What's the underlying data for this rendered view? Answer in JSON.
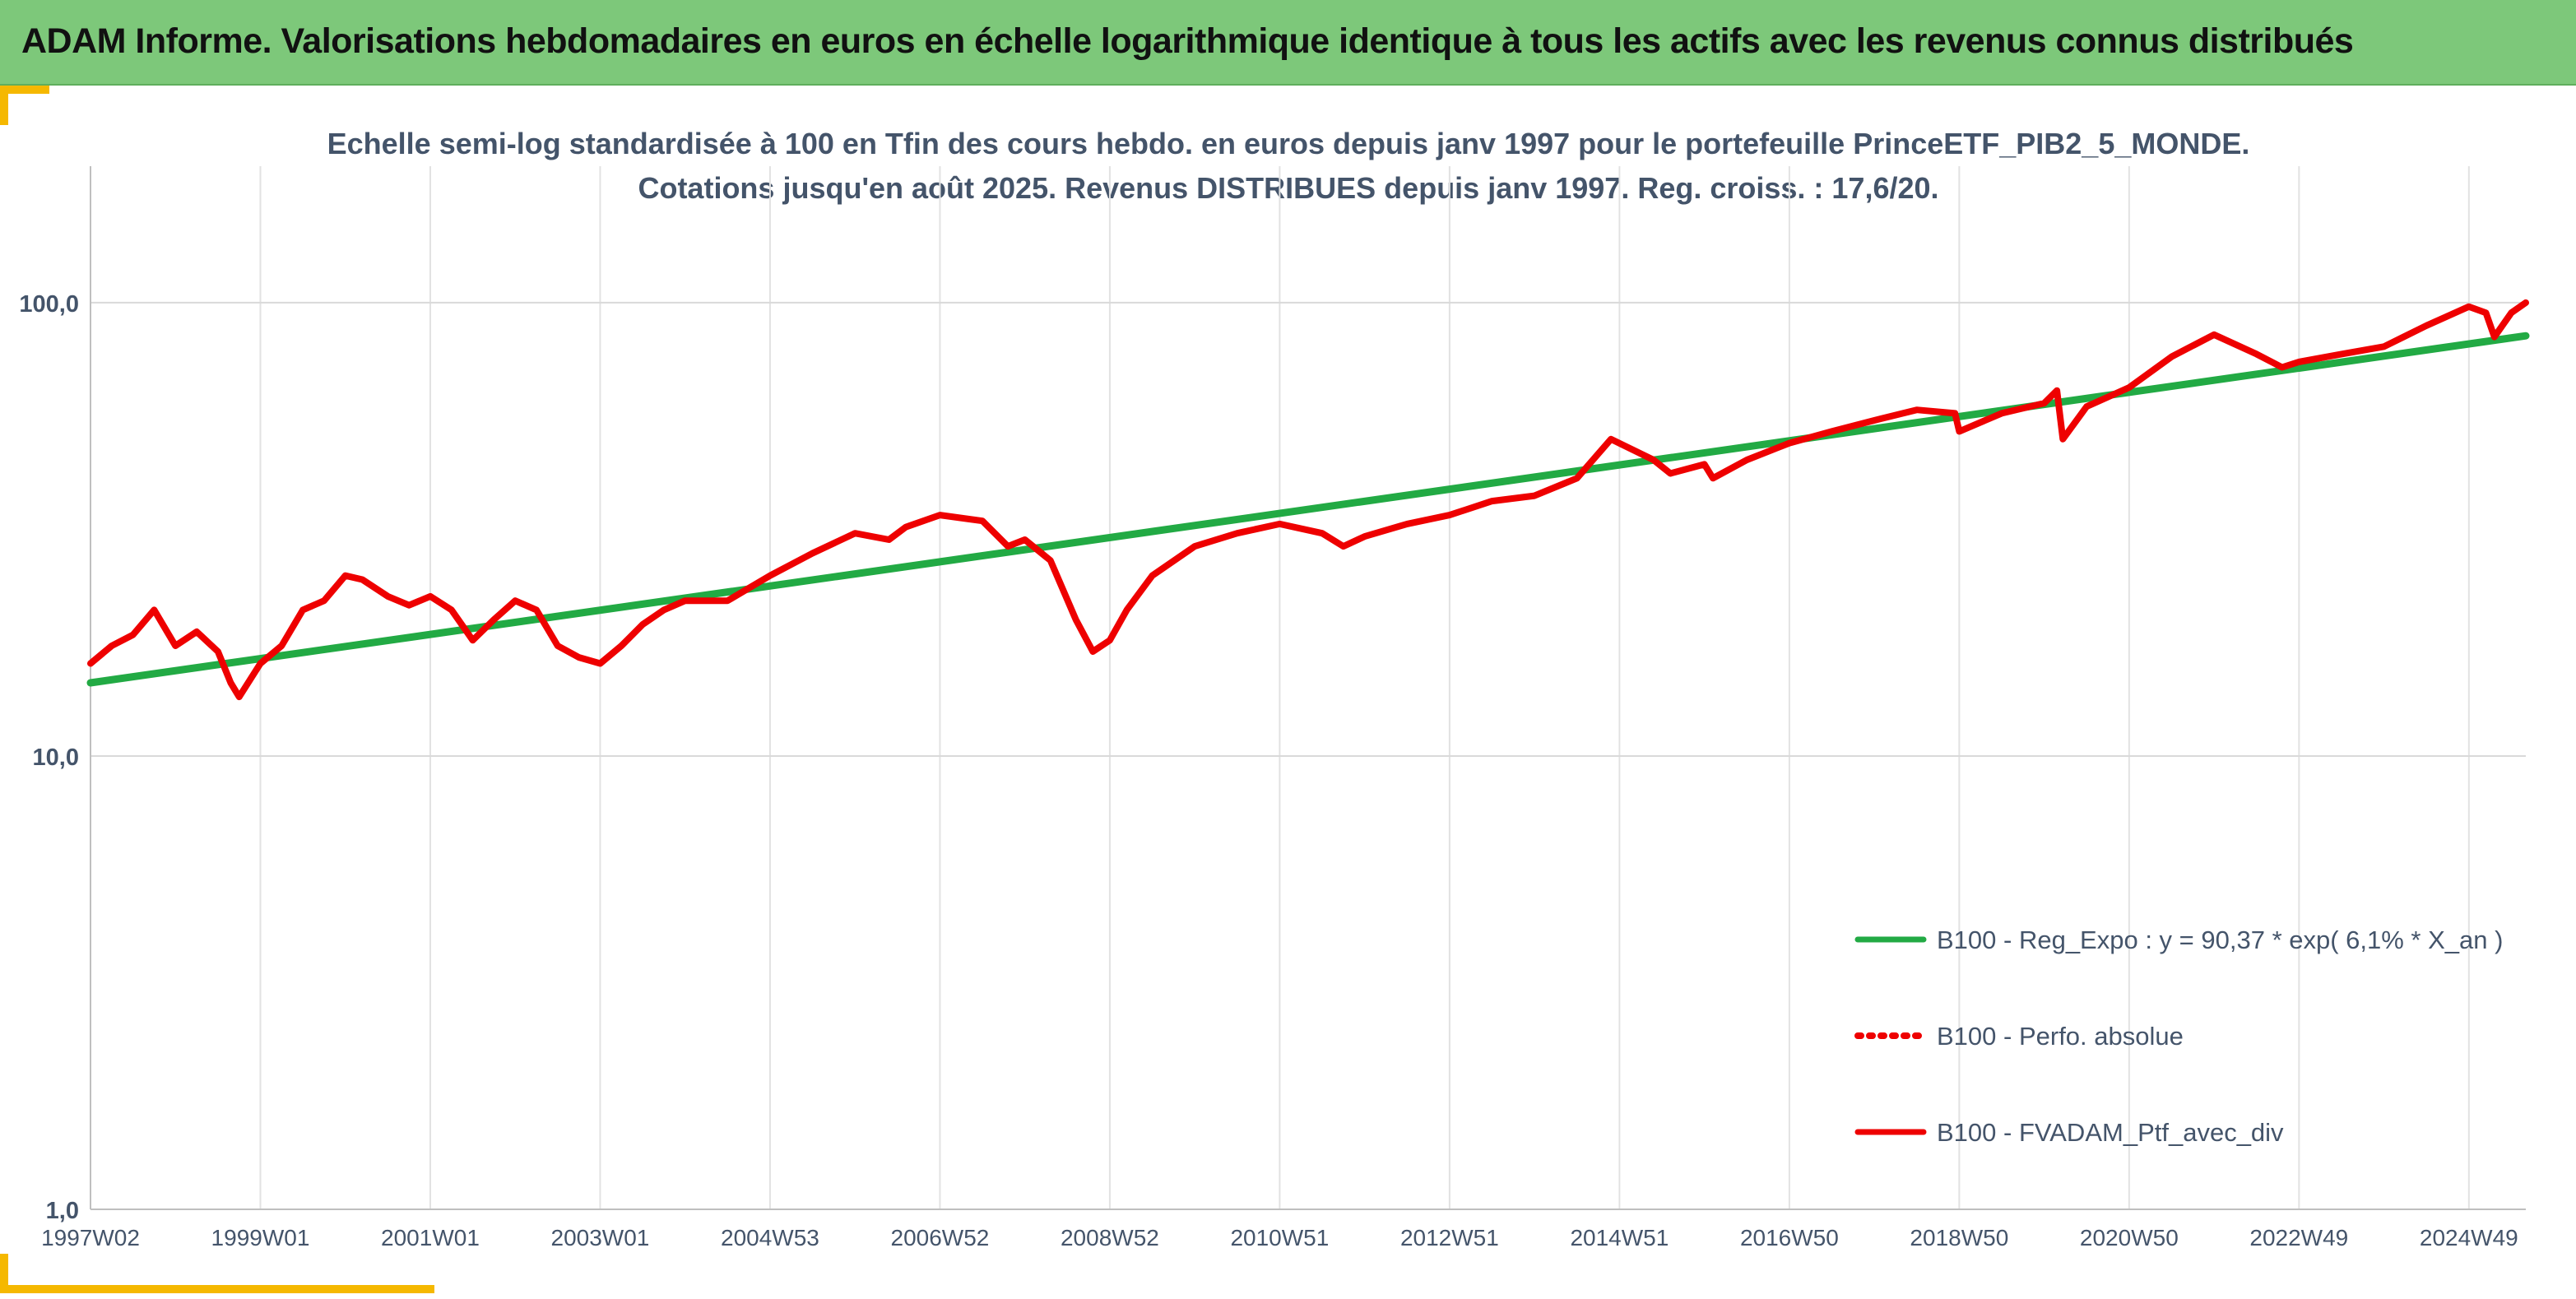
{
  "banner": {
    "title": "ADAM Informe. Valorisations hebdomadaires en euros en échelle logarithmique identique à tous les actifs avec les revenus connus distribués"
  },
  "colors": {
    "banner_bg": "#7dc87a",
    "accent_corner": "#f5b800",
    "series_regression": "#22aa44",
    "series_portfolio": "#ee0000"
  },
  "chart_data": {
    "type": "line",
    "title_lines": [
      "Echelle semi-log standardisée à 100 en Tfin des cours hebdo. en euros depuis janv 1997 pour le portefeuille PrinceETF_PIB2_5_MONDE.",
      "Cotations jusqu'en août 2025. Revenus DISTRIBUES depuis janv 1997. Reg. croiss. : 17,6/20."
    ],
    "y_scale": "log",
    "ylim": [
      1,
      200
    ],
    "y_ticks": [
      1,
      10,
      100
    ],
    "y_tick_labels": [
      "1,0",
      "10,0",
      "100,0"
    ],
    "x_range": [
      1997.0,
      2025.67
    ],
    "x_ticks": [
      1997.0,
      1999.0,
      2001.0,
      2003.0,
      2005.0,
      2007.0,
      2009.0,
      2011.0,
      2013.0,
      2015.0,
      2017.0,
      2019.0,
      2021.0,
      2023.0,
      2025.0
    ],
    "x_tick_labels": [
      "1997W02",
      "1999W01",
      "2001W01",
      "2003W01",
      "2004W53",
      "2006W52",
      "2008W52",
      "2010W51",
      "2012W51",
      "2014W51",
      "2016W50",
      "2018W50",
      "2020W50",
      "2022W49",
      "2024W49"
    ],
    "grid": {
      "vertical": true,
      "horizontal": true
    },
    "legend": {
      "placement": "bottom-right",
      "entries": [
        {
          "label": "B100 - Reg_Expo : y = 90,37 * exp( 6,1% *  X_an )",
          "style": "solid",
          "color": "#22aa44"
        },
        {
          "label": "B100 - Perfo. absolue",
          "style": "dotted",
          "color": "#ee0000"
        },
        {
          "label": "B100 - FVADAM_Ptf_avec_div",
          "style": "solid",
          "color": "#ee0000"
        }
      ]
    },
    "series": [
      {
        "name": "B100 - Reg_Expo : y = 90,37 * exp( 6,1% *  X_an )",
        "color": "#22aa44",
        "x": [
          1997.0,
          2025.67
        ],
        "y": [
          14.5,
          84.5
        ]
      },
      {
        "name": "B100 - FVADAM_Ptf_avec_div",
        "color": "#ee0000",
        "x": [
          1997.0,
          1997.25,
          1997.5,
          1997.75,
          1998.0,
          1998.25,
          1998.5,
          1998.65,
          1998.75,
          1999.0,
          1999.25,
          1999.5,
          1999.75,
          2000.0,
          2000.2,
          2000.5,
          2000.75,
          2001.0,
          2001.25,
          2001.5,
          2001.75,
          2002.0,
          2002.25,
          2002.5,
          2002.75,
          2003.0,
          2003.25,
          2003.5,
          2003.75,
          2004.0,
          2004.5,
          2005.0,
          2005.5,
          2006.0,
          2006.4,
          2006.6,
          2007.0,
          2007.5,
          2007.8,
          2008.0,
          2008.3,
          2008.6,
          2008.8,
          2009.0,
          2009.2,
          2009.5,
          2010.0,
          2010.5,
          2011.0,
          2011.5,
          2011.75,
          2012.0,
          2012.5,
          2013.0,
          2013.5,
          2014.0,
          2014.5,
          2014.9,
          2015.4,
          2015.6,
          2016.0,
          2016.1,
          2016.5,
          2017.0,
          2017.5,
          2018.0,
          2018.5,
          2018.95,
          2019.0,
          2019.5,
          2020.0,
          2020.15,
          2020.22,
          2020.5,
          2021.0,
          2021.5,
          2022.0,
          2022.5,
          2022.8,
          2023.0,
          2023.5,
          2024.0,
          2024.5,
          2025.0,
          2025.2,
          2025.3,
          2025.5,
          2025.67
        ],
        "y": [
          16.0,
          17.5,
          18.5,
          21.0,
          17.5,
          18.8,
          17.0,
          14.5,
          13.5,
          16.0,
          17.5,
          21.0,
          22.0,
          25.0,
          24.5,
          22.5,
          21.5,
          22.5,
          21.0,
          18.0,
          20.0,
          22.0,
          21.0,
          17.5,
          16.5,
          16.0,
          17.5,
          19.5,
          21.0,
          22.0,
          22.0,
          25.0,
          28.0,
          31.0,
          30.0,
          32.0,
          34.0,
          33.0,
          29.0,
          30.0,
          27.0,
          20.0,
          17.0,
          18.0,
          21.0,
          25.0,
          29.0,
          31.0,
          32.5,
          31.0,
          29.0,
          30.5,
          32.5,
          34.0,
          36.5,
          37.5,
          41.0,
          50.0,
          45.0,
          42.0,
          44.0,
          41.0,
          45.0,
          49.0,
          52.0,
          55.0,
          58.0,
          57.0,
          52.0,
          57.0,
          60.0,
          64.0,
          50.0,
          59.0,
          65.0,
          76.0,
          85.0,
          77.0,
          72.0,
          74.0,
          77.0,
          80.0,
          89.0,
          98.0,
          95.0,
          84.0,
          95.0,
          100.0
        ]
      }
    ]
  }
}
